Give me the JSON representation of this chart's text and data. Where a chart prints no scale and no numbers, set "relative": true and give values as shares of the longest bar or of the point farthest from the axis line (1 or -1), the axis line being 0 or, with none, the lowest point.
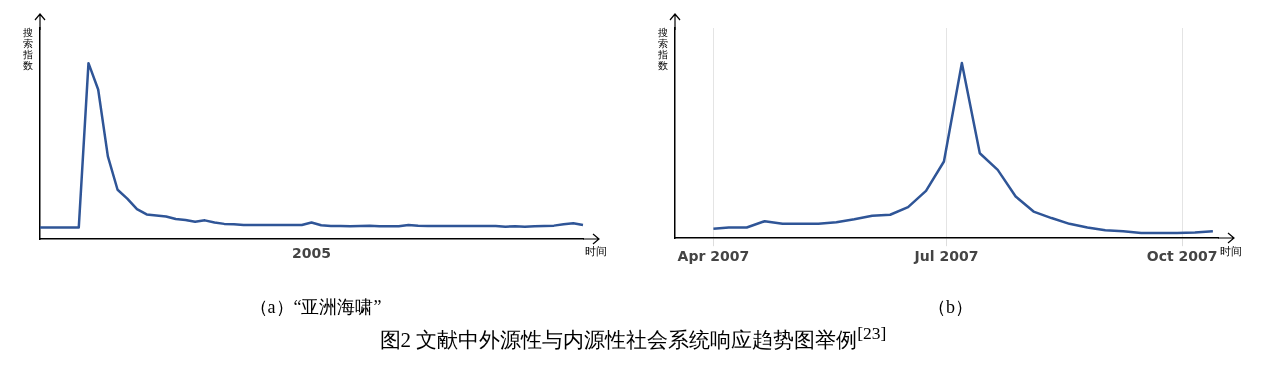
{
  "chart_data": [
    {
      "type": "line",
      "subtitle": "（a）“亚洲海啸”",
      "ylabel": "搜索指数",
      "xlabel": "时间",
      "relative": true,
      "legend": false,
      "marker": "none",
      "line_style": "solid",
      "categories": [
        null,
        null,
        null,
        null,
        null,
        null,
        null,
        null,
        null,
        null,
        null,
        null,
        null,
        null,
        null,
        null,
        null,
        null,
        null,
        null,
        null,
        null,
        null,
        null,
        null,
        null,
        null,
        null,
        null,
        null,
        null,
        null,
        null,
        null,
        null,
        null,
        null,
        null,
        null,
        null,
        null,
        null,
        null,
        null,
        null,
        null,
        null,
        null,
        null,
        null,
        null,
        null,
        null,
        null,
        null,
        null,
        null
      ],
      "series": [
        {
          "color": "#2f5597",
          "values": [
            0.066,
            0.066,
            0.066,
            0.066,
            0.066,
            1.0,
            0.85,
            0.47,
            0.28,
            0.23,
            0.17,
            0.14,
            0.134,
            0.128,
            0.114,
            0.108,
            0.098,
            0.106,
            0.094,
            0.086,
            0.084,
            0.08,
            0.08,
            0.08,
            0.08,
            0.08,
            0.08,
            0.08,
            0.094,
            0.078,
            0.074,
            0.074,
            0.072,
            0.074,
            0.076,
            0.072,
            0.072,
            0.072,
            0.08,
            0.076,
            0.074,
            0.074,
            0.074,
            0.074,
            0.074,
            0.074,
            0.074,
            0.074,
            0.07,
            0.072,
            0.07,
            0.072,
            0.074,
            0.076,
            0.084,
            0.09,
            0.08
          ]
        }
      ],
      "annotations": [
        "2005"
      ]
    },
    {
      "type": "line",
      "subtitle": "（b）",
      "ylabel": "搜索指数",
      "xlabel": "时间",
      "relative": true,
      "legend": false,
      "marker": "none",
      "line_style": "solid",
      "grid": "x",
      "xlim": [
        "2007-03-17",
        "2007-10-15"
      ],
      "xticks": [
        {
          "value": "2007-04-01",
          "label": "Apr 2007"
        },
        {
          "value": "2007-07-01",
          "label": "Jul 2007"
        },
        {
          "value": "2007-10-01",
          "label": "Oct 2007"
        }
      ],
      "x": [
        "2007-04-01",
        "2007-04-07",
        "2007-04-14",
        "2007-04-21",
        "2007-04-28",
        "2007-05-05",
        "2007-05-12",
        "2007-05-19",
        "2007-05-26",
        "2007-06-02",
        "2007-06-09",
        "2007-06-16",
        "2007-06-23",
        "2007-06-30",
        "2007-07-07",
        "2007-07-14",
        "2007-07-21",
        "2007-07-28",
        "2007-08-04",
        "2007-08-11",
        "2007-08-18",
        "2007-08-25",
        "2007-09-01",
        "2007-09-08",
        "2007-09-15",
        "2007-09-22",
        "2007-09-29",
        "2007-10-06",
        "2007-10-13"
      ],
      "series": [
        {
          "color": "#2f5597",
          "values": [
            0.054,
            0.061,
            0.061,
            0.097,
            0.082,
            0.082,
            0.082,
            0.091,
            0.108,
            0.128,
            0.134,
            0.177,
            0.27,
            0.438,
            1.0,
            0.485,
            0.39,
            0.238,
            0.152,
            0.115,
            0.082,
            0.061,
            0.045,
            0.039,
            0.03,
            0.03,
            0.03,
            0.032,
            0.039
          ]
        }
      ],
      "annotations": [
        "图2  文献中外源性与内源性社会系统响应趋势图举例$^{[23]}$"
      ]
    }
  ]
}
